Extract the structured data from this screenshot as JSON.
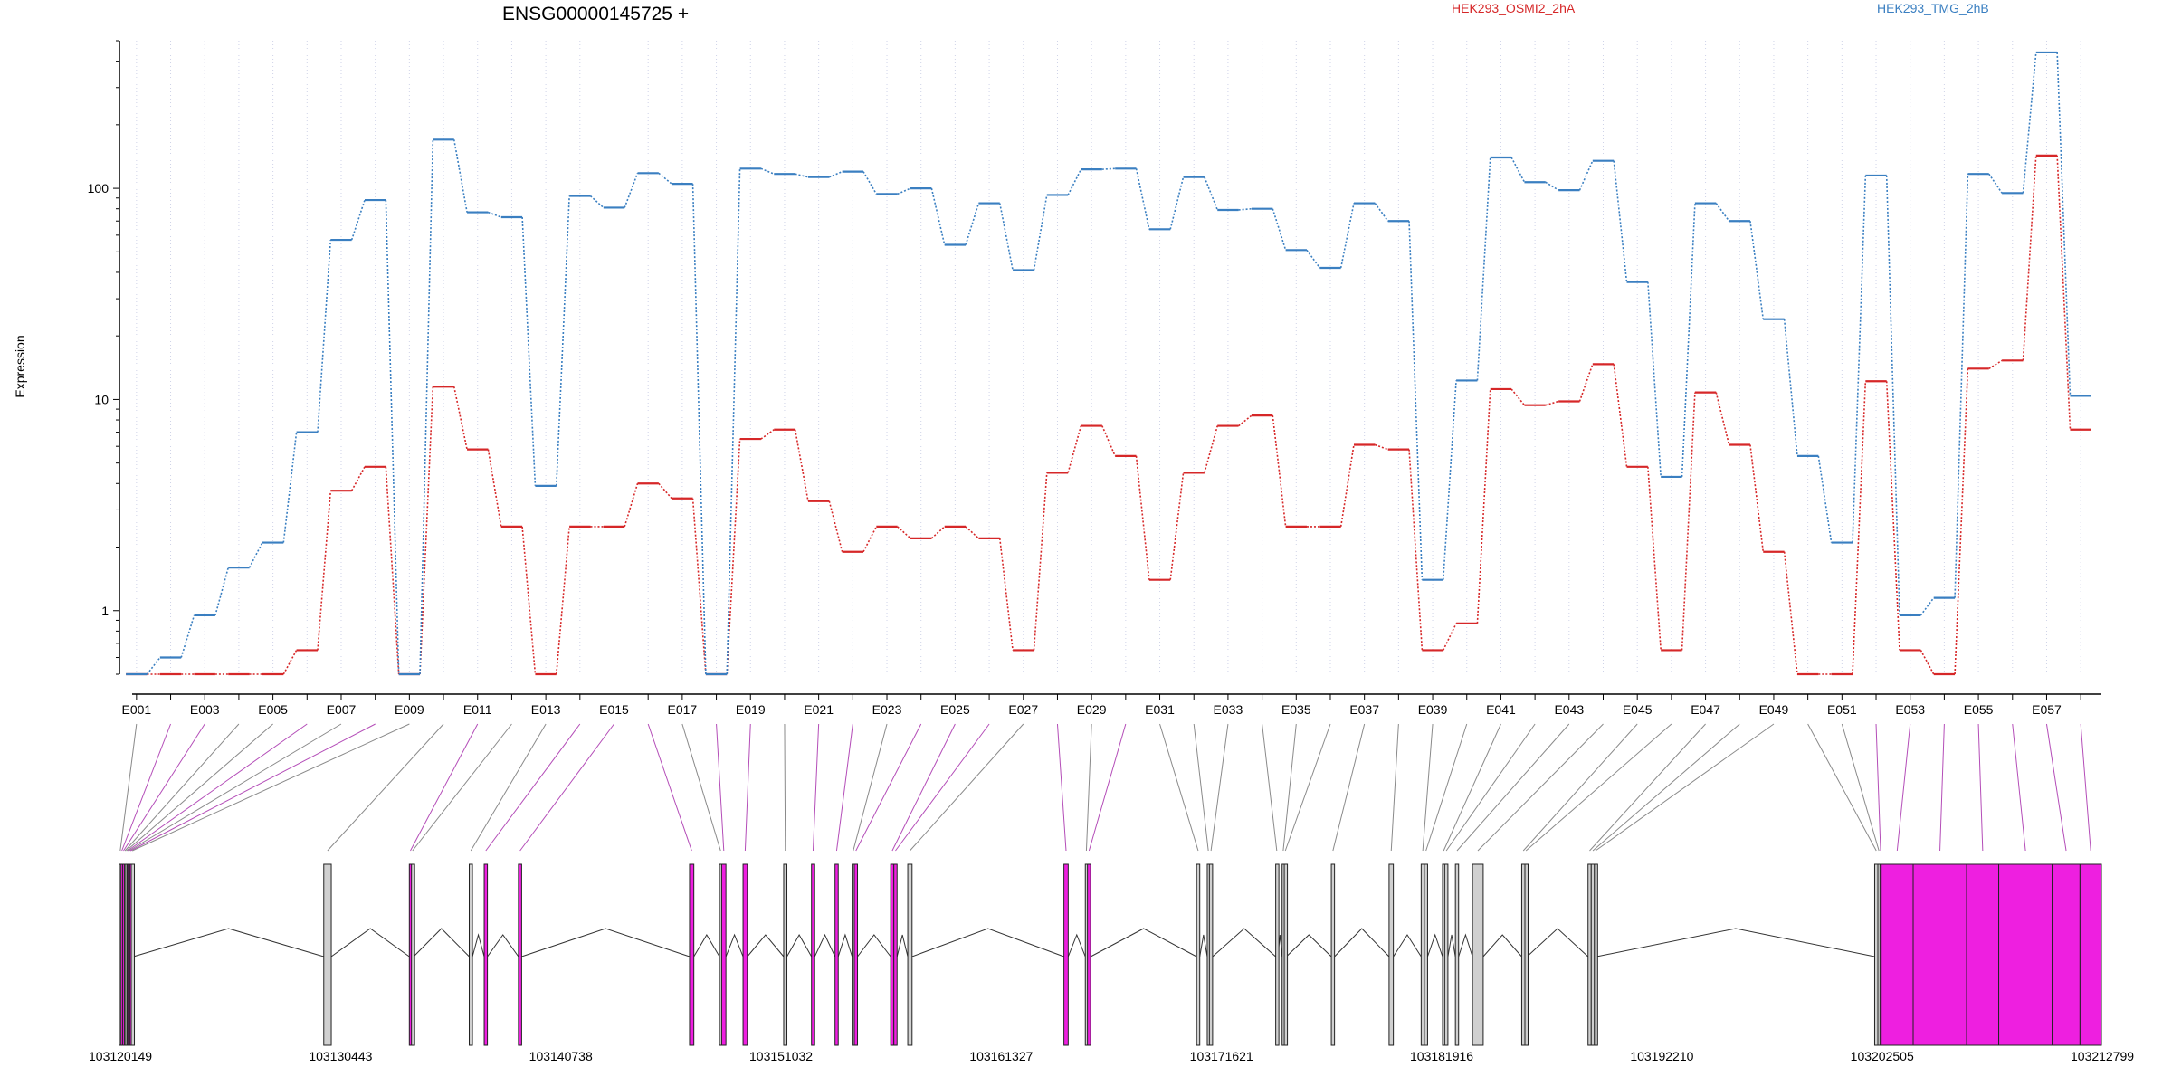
{
  "chart_data": {
    "type": "line",
    "title": "ENSG00000145725 +",
    "ylabel": "Expression",
    "xlabel": "",
    "y_scale": "log",
    "ylim": [
      0.5,
      500
    ],
    "y_ticks": [
      1,
      10,
      100
    ],
    "y_tick_labels": [
      "1",
      "10",
      "100"
    ],
    "grid": "vertical dotted lines at exon positions",
    "legend_placement": "top",
    "colors": {
      "HEK293_OSMI2_2hA": "#d62728",
      "HEK293_TMG_2hB": "#3a7fc1",
      "exon_highlight": "#ee1fe0",
      "exon_normal": "#d0d0d0"
    },
    "categories": [
      "E001",
      "E002",
      "E003",
      "E004",
      "E005",
      "E006",
      "E007",
      "E008",
      "E009",
      "E010",
      "E011",
      "E012",
      "E013",
      "E014",
      "E015",
      "E016",
      "E017",
      "E018",
      "E019",
      "E020",
      "E021",
      "E022",
      "E023",
      "E024",
      "E025",
      "E026",
      "E027",
      "E028",
      "E029",
      "E030",
      "E031",
      "E032",
      "E033",
      "E034",
      "E035",
      "E036",
      "E037",
      "E038",
      "E039",
      "E040",
      "E041",
      "E042",
      "E043",
      "E044",
      "E045",
      "E046",
      "E047",
      "E048",
      "E049",
      "E050",
      "E051",
      "E052",
      "E053",
      "E054",
      "E055",
      "E056",
      "E057",
      "E058"
    ],
    "category_labels": [
      "E001",
      "E003",
      "E005",
      "E007",
      "E009",
      "E011",
      "E013",
      "E015",
      "E017",
      "E019",
      "E021",
      "E023",
      "E025",
      "E027",
      "E029",
      "E031",
      "E033",
      "E035",
      "E037",
      "E039",
      "E041",
      "E043",
      "E045",
      "E047",
      "E049",
      "E051",
      "E053",
      "E055",
      "E057"
    ],
    "series": [
      {
        "name": "HEK293_OSMI2_2hA",
        "values": [
          0.5,
          0.5,
          0.5,
          0.5,
          0.5,
          0.65,
          3.7,
          4.8,
          0.5,
          11.5,
          5.8,
          2.5,
          0.5,
          2.5,
          2.5,
          4.0,
          3.4,
          0.5,
          6.5,
          7.2,
          3.3,
          1.9,
          2.5,
          2.2,
          2.5,
          2.2,
          0.65,
          4.5,
          7.5,
          5.4,
          1.4,
          4.5,
          7.5,
          8.4,
          2.5,
          2.5,
          6.1,
          5.8,
          0.65,
          0.87,
          11.2,
          9.4,
          9.8,
          14.7,
          4.8,
          0.65,
          10.8,
          6.1,
          1.9,
          0.5,
          0.5,
          12.2,
          0.65,
          0.5,
          14.0,
          15.3,
          143,
          7.2
        ]
      },
      {
        "name": "HEK293_TMG_2hB",
        "values": [
          0.5,
          0.6,
          0.95,
          1.6,
          2.1,
          7.0,
          57,
          88,
          0.5,
          170,
          77,
          73,
          3.9,
          92,
          81,
          118,
          105,
          0.5,
          124,
          117,
          113,
          120,
          94,
          100,
          54,
          85,
          41,
          93,
          123,
          124,
          64,
          113,
          79,
          80,
          51,
          42,
          85,
          70,
          1.4,
          12.3,
          140,
          107,
          98,
          135,
          36,
          4.3,
          85,
          70,
          24,
          5.4,
          2.1,
          115,
          0.95,
          1.15,
          117,
          95,
          440,
          10.4
        ]
      }
    ],
    "gene_coordinate_labels": [
      "103120149",
      "103130443",
      "103140738",
      "103151032",
      "103161327",
      "103171621",
      "103181916",
      "103192210",
      "103202505",
      "103212799"
    ],
    "gene_range": [
      103120149,
      103212799
    ],
    "exon_genomic_positions": [
      {
        "id": "E001",
        "start": 103120149,
        "end": 103120220,
        "hl": false
      },
      {
        "id": "E002",
        "start": 103120220,
        "end": 103120300,
        "hl": true
      },
      {
        "id": "E003",
        "start": 103120300,
        "end": 103120380,
        "hl": true
      },
      {
        "id": "E004",
        "start": 103120380,
        "end": 103120440,
        "hl": false
      },
      {
        "id": "E005",
        "start": 103120440,
        "end": 103120510,
        "hl": false
      },
      {
        "id": "E006",
        "start": 103120510,
        "end": 103120560,
        "hl": true
      },
      {
        "id": "E007",
        "start": 103120560,
        "end": 103120630,
        "hl": false
      },
      {
        "id": "E008",
        "start": 103120630,
        "end": 103120700,
        "hl": true
      },
      {
        "id": "E009",
        "start": 103120700,
        "end": 103120800,
        "hl": false
      },
      {
        "id": "E010",
        "start": 103129700,
        "end": 103130050,
        "hl": false
      },
      {
        "id": "E011",
        "start": 103133700,
        "end": 103133800,
        "hl": true
      },
      {
        "id": "E012",
        "start": 103133800,
        "end": 103133900,
        "hl": false
      },
      {
        "id": "E013",
        "start": 103136500,
        "end": 103136650,
        "hl": false
      },
      {
        "id": "E014",
        "start": 103137200,
        "end": 103137350,
        "hl": true
      },
      {
        "id": "E015",
        "start": 103138800,
        "end": 103138950,
        "hl": true
      },
      {
        "id": "E016",
        "start": 103146800,
        "end": 103147000,
        "hl": true
      },
      {
        "id": "E017",
        "start": 103148200,
        "end": 103148300,
        "hl": false
      },
      {
        "id": "E018",
        "start": 103148300,
        "end": 103148500,
        "hl": true
      },
      {
        "id": "E019",
        "start": 103149300,
        "end": 103149500,
        "hl": true
      },
      {
        "id": "E020",
        "start": 103151200,
        "end": 103151350,
        "hl": false
      },
      {
        "id": "E021",
        "start": 103152500,
        "end": 103152650,
        "hl": true
      },
      {
        "id": "E022",
        "start": 103153600,
        "end": 103153750,
        "hl": true
      },
      {
        "id": "E023",
        "start": 103154400,
        "end": 103154500,
        "hl": false
      },
      {
        "id": "E024",
        "start": 103154500,
        "end": 103154650,
        "hl": true
      },
      {
        "id": "E025",
        "start": 103156200,
        "end": 103156350,
        "hl": true
      },
      {
        "id": "E026",
        "start": 103156350,
        "end": 103156500,
        "hl": true
      },
      {
        "id": "E027",
        "start": 103157000,
        "end": 103157200,
        "hl": false
      },
      {
        "id": "E028",
        "start": 103164300,
        "end": 103164500,
        "hl": true
      },
      {
        "id": "E029",
        "start": 103165300,
        "end": 103165400,
        "hl": false
      },
      {
        "id": "E030",
        "start": 103165400,
        "end": 103165550,
        "hl": true
      },
      {
        "id": "E031",
        "start": 103170500,
        "end": 103170650,
        "hl": false
      },
      {
        "id": "E032",
        "start": 103171000,
        "end": 103171100,
        "hl": false
      },
      {
        "id": "E033",
        "start": 103171100,
        "end": 103171250,
        "hl": false
      },
      {
        "id": "E034",
        "start": 103174200,
        "end": 103174300,
        "hl": false
      },
      {
        "id": "E035",
        "start": 103174500,
        "end": 103174600,
        "hl": false
      },
      {
        "id": "E036",
        "start": 103174600,
        "end": 103174700,
        "hl": false
      },
      {
        "id": "E037",
        "start": 103176800,
        "end": 103176950,
        "hl": false
      },
      {
        "id": "E038",
        "start": 103179500,
        "end": 103179700,
        "hl": false
      },
      {
        "id": "E039",
        "start": 103181000,
        "end": 103181150,
        "hl": false
      },
      {
        "id": "E040",
        "start": 103181150,
        "end": 103181300,
        "hl": false
      },
      {
        "id": "E041",
        "start": 103182000,
        "end": 103182100,
        "hl": false
      },
      {
        "id": "E042",
        "start": 103182100,
        "end": 103182250,
        "hl": false
      },
      {
        "id": "E043",
        "start": 103182600,
        "end": 103182750,
        "hl": false
      },
      {
        "id": "E044",
        "start": 103183400,
        "end": 103183900,
        "hl": false
      },
      {
        "id": "E045",
        "start": 103185700,
        "end": 103185850,
        "hl": false
      },
      {
        "id": "E046",
        "start": 103185850,
        "end": 103185950,
        "hl": false
      },
      {
        "id": "E047",
        "start": 103188800,
        "end": 103188950,
        "hl": false
      },
      {
        "id": "E048",
        "start": 103188950,
        "end": 103189100,
        "hl": false
      },
      {
        "id": "E049",
        "start": 103189100,
        "end": 103189200,
        "hl": false
      },
      {
        "id": "E050",
        "start": 103202200,
        "end": 103202350,
        "hl": false
      },
      {
        "id": "E051",
        "start": 103202350,
        "end": 103202450,
        "hl": false
      },
      {
        "id": "E052",
        "start": 103202450,
        "end": 103202505,
        "hl": true
      },
      {
        "id": "E053",
        "start": 103202505,
        "end": 103204000,
        "hl": true
      },
      {
        "id": "E054",
        "start": 103204000,
        "end": 103206500,
        "hl": true
      },
      {
        "id": "E055",
        "start": 103206500,
        "end": 103208000,
        "hl": true
      },
      {
        "id": "E056",
        "start": 103208000,
        "end": 103210500,
        "hl": true
      },
      {
        "id": "E057",
        "start": 103210500,
        "end": 103211800,
        "hl": true
      },
      {
        "id": "E058",
        "start": 103211800,
        "end": 103212799,
        "hl": true
      }
    ]
  }
}
